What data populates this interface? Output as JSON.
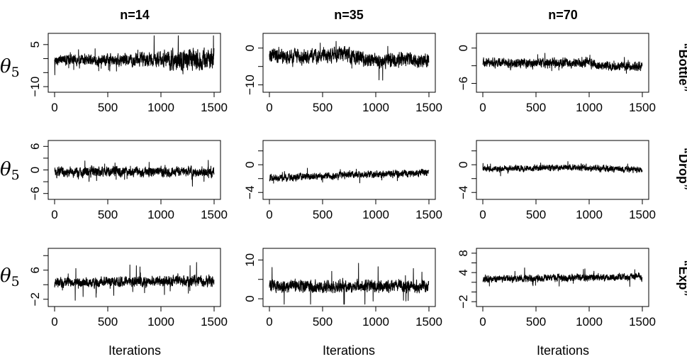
{
  "chart_data": {
    "type": "line",
    "column_titles": [
      "n=14",
      "n=35",
      "n=70"
    ],
    "row_labels": [
      "“Bottle”",
      "“Drop”",
      "“Exp”"
    ],
    "y_label_symbol": "θ",
    "y_label_subscript": "5",
    "x_label": "Iterations",
    "x_range": [
      0,
      1500
    ],
    "x_ticks": [
      "0",
      "500",
      "1000",
      "1500"
    ],
    "iterations": 1500,
    "grid": false,
    "panels": [
      {
        "row": 0,
        "col": 0,
        "ylim": [
          -12,
          9
        ],
        "yticks": [
          -10,
          -5,
          0,
          5
        ],
        "ytick_labels": [
          "−10",
          "",
          "",
          "5"
        ],
        "center": -0.5,
        "spread": 1.2,
        "spikes": 4.5,
        "drift": [
          [
            0,
            0
          ],
          [
            900,
            0
          ],
          [
            1500,
            0.5
          ]
        ],
        "vol": [
          [
            0,
            1
          ],
          [
            900,
            1.4
          ],
          [
            1200,
            2.4
          ],
          [
            1500,
            2.2
          ]
        ]
      },
      {
        "row": 0,
        "col": 1,
        "ylim": [
          -12,
          4
        ],
        "yticks": [
          -10,
          -5,
          0
        ],
        "ytick_labels": [
          "−10",
          "",
          "0"
        ],
        "center": -2.5,
        "spread": 1.4,
        "spikes": 4,
        "drift": [
          [
            0,
            0
          ],
          [
            700,
            0.8
          ],
          [
            1000,
            -0.8
          ],
          [
            1500,
            -0.6
          ]
        ],
        "vol": [
          [
            0,
            1
          ],
          [
            1500,
            1
          ]
        ]
      },
      {
        "row": 0,
        "col": 2,
        "ylim": [
          -7.5,
          2.5
        ],
        "yticks": [
          -6,
          -3,
          0
        ],
        "ytick_labels": [
          "−6",
          "",
          "0"
        ],
        "center": -2.5,
        "spread": 0.55,
        "spikes": 1.2,
        "drift": [
          [
            0,
            0
          ],
          [
            1000,
            0
          ],
          [
            1100,
            -0.6
          ],
          [
            1500,
            -0.6
          ]
        ],
        "vol": [
          [
            0,
            1
          ],
          [
            1500,
            1
          ]
        ]
      },
      {
        "row": 1,
        "col": 0,
        "ylim": [
          -7.5,
          7.5
        ],
        "yticks": [
          -6,
          -3,
          0,
          3,
          6
        ],
        "ytick_labels": [
          "−6",
          "",
          "0",
          "",
          "6"
        ],
        "center": -0.5,
        "spread": 0.9,
        "spikes": 2.8,
        "drift": [
          [
            0,
            0
          ],
          [
            1500,
            0
          ]
        ],
        "vol": [
          [
            0,
            1
          ],
          [
            1500,
            1
          ]
        ]
      },
      {
        "row": 1,
        "col": 1,
        "ylim": [
          -5,
          3.5
        ],
        "yticks": [
          -4,
          -2,
          0,
          2
        ],
        "ytick_labels": [
          "−4",
          "",
          "0",
          ""
        ],
        "center": -1.9,
        "spread": 0.35,
        "spikes": 0.8,
        "drift": [
          [
            0,
            0
          ],
          [
            1500,
            0.8
          ]
        ],
        "vol": [
          [
            0,
            1
          ],
          [
            1500,
            1
          ]
        ]
      },
      {
        "row": 1,
        "col": 2,
        "ylim": [
          -5,
          3.5
        ],
        "yticks": [
          -4,
          -2,
          0,
          2
        ],
        "ytick_labels": [
          "−4",
          "",
          "0",
          ""
        ],
        "center": -0.6,
        "spread": 0.3,
        "spikes": 0.7,
        "drift": [
          [
            0,
            0
          ],
          [
            800,
            0.2
          ],
          [
            1500,
            -0.1
          ]
        ],
        "vol": [
          [
            0,
            1
          ],
          [
            1500,
            1
          ]
        ]
      },
      {
        "row": 2,
        "col": 0,
        "ylim": [
          -4,
          12
        ],
        "yticks": [
          -2,
          2,
          6,
          10
        ],
        "ytick_labels": [
          "−2",
          "",
          "6",
          ""
        ],
        "center": 2.6,
        "spread": 0.9,
        "spikes": 4.5,
        "drift": [
          [
            0,
            0
          ],
          [
            1500,
            0.6
          ]
        ],
        "vol": [
          [
            0,
            1
          ],
          [
            1500,
            1.2
          ]
        ]
      },
      {
        "row": 2,
        "col": 1,
        "ylim": [
          -2,
          13
        ],
        "yticks": [
          0,
          5,
          10
        ],
        "ytick_labels": [
          "0",
          "",
          "10"
        ],
        "center": 3.2,
        "spread": 1.1,
        "spikes": 5.5,
        "drift": [
          [
            0,
            0
          ],
          [
            1500,
            0
          ]
        ],
        "vol": [
          [
            0,
            1
          ],
          [
            1500,
            1
          ]
        ]
      },
      {
        "row": 2,
        "col": 2,
        "ylim": [
          -3,
          9
        ],
        "yticks": [
          -2,
          0,
          2,
          4,
          6,
          8
        ],
        "ytick_labels": [
          "−2",
          "",
          "",
          "4",
          "",
          "8"
        ],
        "center": 2.7,
        "spread": 0.5,
        "spikes": 1.6,
        "drift": [
          [
            0,
            0
          ],
          [
            1500,
            0.4
          ]
        ],
        "vol": [
          [
            0,
            1
          ],
          [
            1500,
            1
          ]
        ]
      }
    ]
  }
}
